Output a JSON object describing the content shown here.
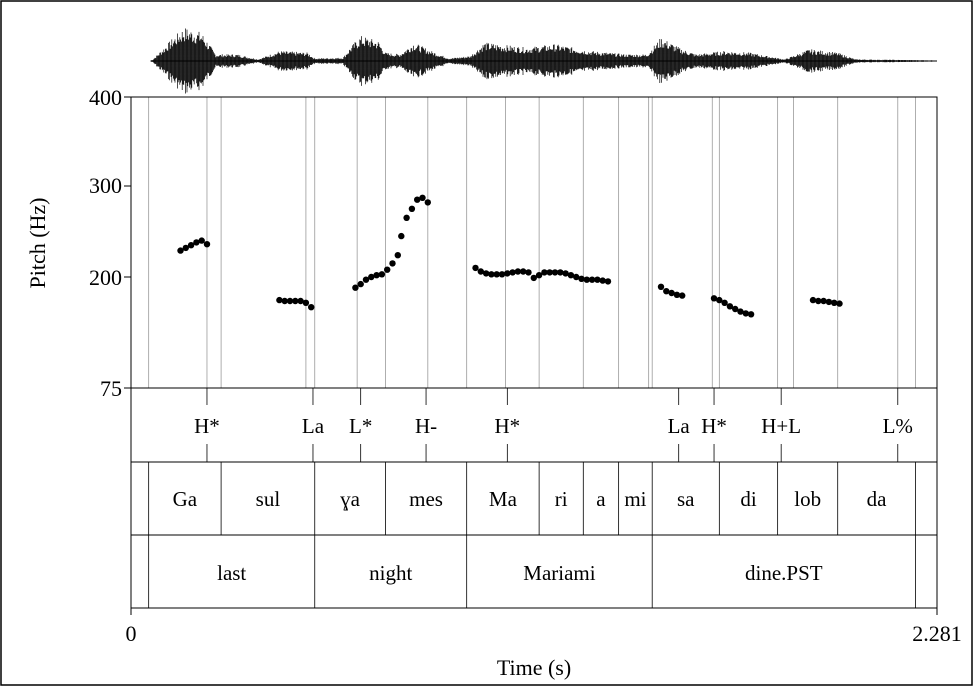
{
  "figure": {
    "y_axis_title": "Pitch (Hz)",
    "x_axis_title": "Time (s)",
    "x_start_label": "0",
    "x_end_label": "2.281",
    "y_ticks": [
      "400",
      "300",
      "200",
      "75"
    ]
  },
  "chart_data": {
    "type": "scatter",
    "xlabel": "Time (s)",
    "ylabel": "Pitch (Hz)",
    "xlim": [
      0,
      2.281
    ],
    "ylim": [
      75,
      400
    ],
    "pitch_track": [
      [
        0.14,
        229
      ],
      [
        0.155,
        232
      ],
      [
        0.17,
        235
      ],
      [
        0.185,
        238
      ],
      [
        0.2,
        240
      ],
      [
        0.215,
        236
      ],
      [
        0.42,
        174
      ],
      [
        0.435,
        173
      ],
      [
        0.45,
        173
      ],
      [
        0.465,
        173
      ],
      [
        0.48,
        173
      ],
      [
        0.495,
        171
      ],
      [
        0.51,
        166
      ],
      [
        0.635,
        188
      ],
      [
        0.65,
        192
      ],
      [
        0.665,
        197
      ],
      [
        0.68,
        200
      ],
      [
        0.695,
        202
      ],
      [
        0.71,
        203
      ],
      [
        0.725,
        208
      ],
      [
        0.74,
        215
      ],
      [
        0.755,
        224
      ],
      [
        0.765,
        245
      ],
      [
        0.78,
        265
      ],
      [
        0.795,
        275
      ],
      [
        0.81,
        285
      ],
      [
        0.825,
        287
      ],
      [
        0.84,
        282
      ],
      [
        0.975,
        210
      ],
      [
        0.99,
        206
      ],
      [
        1.005,
        204
      ],
      [
        1.02,
        203
      ],
      [
        1.035,
        203
      ],
      [
        1.05,
        203
      ],
      [
        1.065,
        204
      ],
      [
        1.08,
        205
      ],
      [
        1.095,
        206
      ],
      [
        1.11,
        206
      ],
      [
        1.125,
        205
      ],
      [
        1.14,
        199
      ],
      [
        1.155,
        202
      ],
      [
        1.17,
        205
      ],
      [
        1.185,
        205
      ],
      [
        1.2,
        205
      ],
      [
        1.215,
        205
      ],
      [
        1.23,
        204
      ],
      [
        1.245,
        202
      ],
      [
        1.26,
        200
      ],
      [
        1.275,
        198
      ],
      [
        1.29,
        197
      ],
      [
        1.305,
        197
      ],
      [
        1.32,
        197
      ],
      [
        1.335,
        196
      ],
      [
        1.35,
        195
      ],
      [
        1.5,
        189
      ],
      [
        1.515,
        184
      ],
      [
        1.53,
        182
      ],
      [
        1.545,
        180
      ],
      [
        1.56,
        179
      ],
      [
        1.65,
        176
      ],
      [
        1.665,
        174
      ],
      [
        1.68,
        171
      ],
      [
        1.695,
        167
      ],
      [
        1.71,
        164
      ],
      [
        1.725,
        161
      ],
      [
        1.74,
        159
      ],
      [
        1.755,
        158
      ],
      [
        1.93,
        174
      ],
      [
        1.945,
        173
      ],
      [
        1.96,
        173
      ],
      [
        1.975,
        172
      ],
      [
        1.99,
        171
      ],
      [
        2.005,
        170
      ]
    ]
  },
  "waveform": {
    "description_free": true,
    "envelope": [
      [
        0.0,
        0.02
      ],
      [
        0.06,
        0.03
      ],
      [
        0.12,
        0.7
      ],
      [
        0.15,
        1.0
      ],
      [
        0.2,
        0.85
      ],
      [
        0.24,
        0.2
      ],
      [
        0.3,
        0.2
      ],
      [
        0.36,
        0.05
      ],
      [
        0.42,
        0.3
      ],
      [
        0.5,
        0.25
      ],
      [
        0.52,
        0.08
      ],
      [
        0.6,
        0.1
      ],
      [
        0.62,
        0.4
      ],
      [
        0.65,
        0.75
      ],
      [
        0.7,
        0.6
      ],
      [
        0.72,
        0.25
      ],
      [
        0.76,
        0.2
      ],
      [
        0.8,
        0.55
      ],
      [
        0.85,
        0.3
      ],
      [
        0.9,
        0.08
      ],
      [
        0.96,
        0.15
      ],
      [
        1.0,
        0.55
      ],
      [
        1.08,
        0.45
      ],
      [
        1.12,
        0.4
      ],
      [
        1.2,
        0.5
      ],
      [
        1.3,
        0.3
      ],
      [
        1.4,
        0.2
      ],
      [
        1.46,
        0.2
      ],
      [
        1.5,
        0.7
      ],
      [
        1.56,
        0.35
      ],
      [
        1.6,
        0.2
      ],
      [
        1.68,
        0.3
      ],
      [
        1.75,
        0.25
      ],
      [
        1.85,
        0.05
      ],
      [
        1.92,
        0.35
      ],
      [
        2.0,
        0.25
      ],
      [
        2.05,
        0.05
      ],
      [
        2.281,
        0.02
      ]
    ]
  },
  "tones": [
    {
      "label": "H*",
      "t": 0.215
    },
    {
      "label": "La",
      "t": 0.515
    },
    {
      "label": "L*",
      "t": 0.65
    },
    {
      "label": "H-",
      "t": 0.835
    },
    {
      "label": "H*",
      "t": 1.065
    },
    {
      "label": "La",
      "t": 1.55
    },
    {
      "label": "H*",
      "t": 1.65
    },
    {
      "label": "H+L",
      "t": 1.84
    },
    {
      "label": "L%",
      "t": 2.17
    }
  ],
  "syllables": [
    {
      "label": "Ga",
      "start": 0.05,
      "end": 0.255
    },
    {
      "label": "sul",
      "start": 0.255,
      "end": 0.52
    },
    {
      "label": "ɣa",
      "start": 0.52,
      "end": 0.72
    },
    {
      "label": "mes",
      "start": 0.72,
      "end": 0.95
    },
    {
      "label": "Ma",
      "start": 0.95,
      "end": 1.155
    },
    {
      "label": "ri",
      "start": 1.155,
      "end": 1.28
    },
    {
      "label": "a",
      "start": 1.28,
      "end": 1.38
    },
    {
      "label": "mi",
      "start": 1.38,
      "end": 1.475
    },
    {
      "label": "sa",
      "start": 1.475,
      "end": 1.665
    },
    {
      "label": "di",
      "start": 1.665,
      "end": 1.83
    },
    {
      "label": "lob",
      "start": 1.83,
      "end": 2.0
    },
    {
      "label": "da",
      "start": 2.0,
      "end": 2.22
    }
  ],
  "words": [
    {
      "label": "last",
      "start": 0.05,
      "end": 0.52
    },
    {
      "label": "night",
      "start": 0.52,
      "end": 0.95
    },
    {
      "label": "Mariami",
      "start": 0.95,
      "end": 1.475
    },
    {
      "label": "dine.PST",
      "start": 1.475,
      "end": 2.22
    }
  ],
  "vertical_guides": [
    0.05,
    0.215,
    0.255,
    0.495,
    0.52,
    0.64,
    0.72,
    0.84,
    0.95,
    1.06,
    1.155,
    1.28,
    1.38,
    1.465,
    1.475,
    1.645,
    1.665,
    1.83,
    1.875,
    2.0,
    2.17,
    2.22
  ]
}
